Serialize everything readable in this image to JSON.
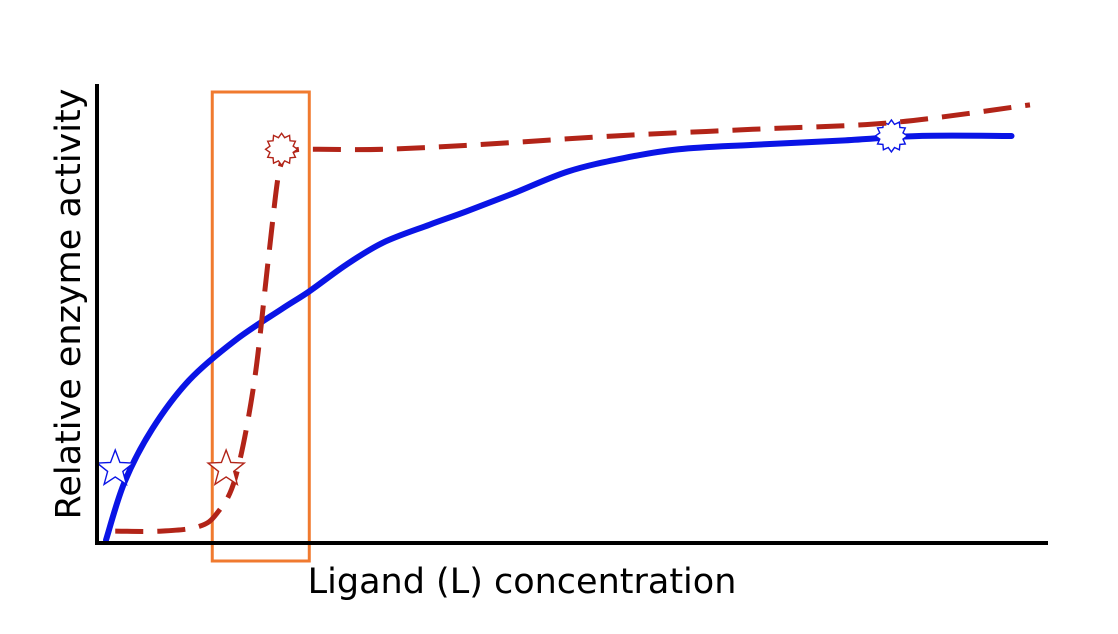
{
  "chart_data": {
    "type": "line",
    "title": "",
    "xlabel": "Ligand (L) concentration",
    "ylabel": "Relative enzyme activity",
    "xlim": [
      0,
      100
    ],
    "ylim": [
      0,
      100
    ],
    "grid": false,
    "legend": "none",
    "series": [
      {
        "line_style": "solid",
        "color": "#0a14e6",
        "marker_style": "outline-star",
        "x": [
          0,
          2,
          5,
          9,
          14,
          19,
          22,
          26,
          30,
          35,
          39,
          44,
          50,
          56,
          62,
          70,
          80,
          88,
          98
        ],
        "y": [
          0,
          13,
          25,
          36,
          45,
          52,
          56,
          62,
          67,
          71,
          74,
          78,
          83,
          86,
          88,
          89,
          90,
          91,
          91
        ],
        "highlight_points": [
          {
            "x": 1,
            "y": 16,
            "symbol": "star"
          },
          {
            "x": 85,
            "y": 91,
            "symbol": "burst"
          }
        ]
      },
      {
        "line_style": "dashed",
        "color": "#b22418",
        "marker_style": "outline-star",
        "x": [
          1,
          6,
          10,
          12,
          14,
          16,
          17.5,
          18.5,
          19,
          19.5,
          20,
          21,
          23,
          30,
          40,
          55,
          70,
          85,
          100
        ],
        "y": [
          2,
          2,
          3,
          6,
          14,
          35,
          62,
          80,
          85,
          87,
          87.5,
          88,
          88,
          88,
          89,
          91,
          92.5,
          94,
          98
        ],
        "highlight_points": [
          {
            "x": 13,
            "y": 16,
            "symbol": "star"
          },
          {
            "x": 19,
            "y": 88,
            "symbol": "burst"
          }
        ]
      }
    ],
    "highlight_region": {
      "x_range": [
        11.5,
        22
      ],
      "color": "#f07a2f"
    }
  }
}
